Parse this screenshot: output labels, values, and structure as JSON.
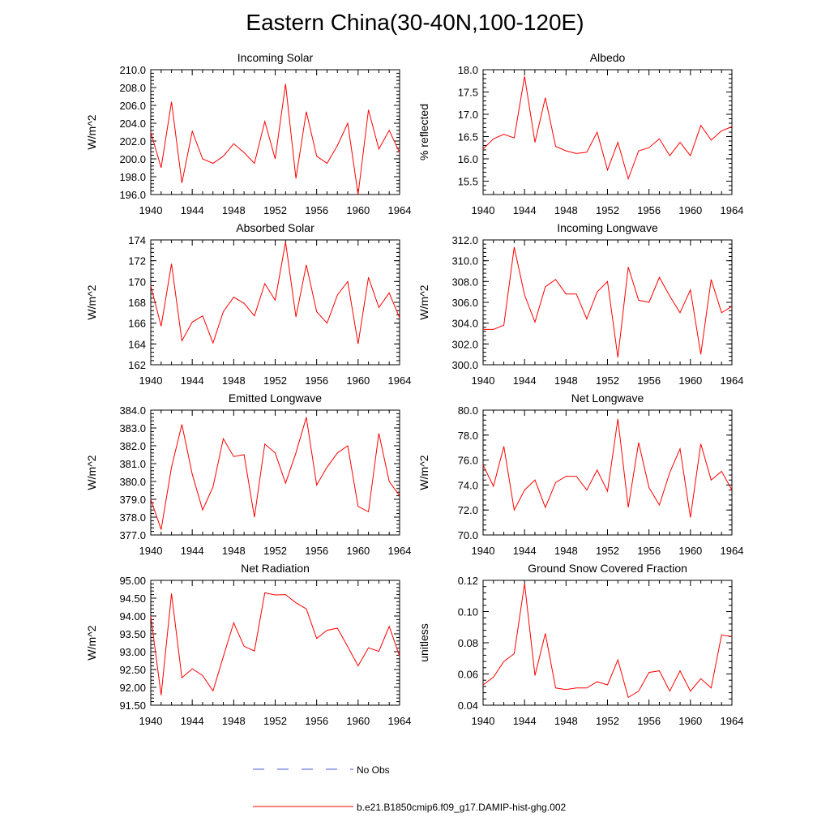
{
  "title": "Eastern China(30-40N,100-120E)",
  "legend": {
    "items": [
      {
        "label": "No Obs",
        "color": "#4b5bd6",
        "dash": true
      },
      {
        "label": "b.e21.B1850cmip6.f09_g17.DAMIP-hist-ghg.002",
        "color": "#ff0000",
        "dash": false
      }
    ]
  },
  "chart_data": [
    {
      "type": "line",
      "title": "Incoming Solar",
      "ylabel": "W/m^2",
      "xlim": [
        1940,
        1964
      ],
      "ylim": [
        196,
        210
      ],
      "yticks": [
        "196.0",
        "198.0",
        "200.0",
        "202.0",
        "204.0",
        "206.0",
        "208.0",
        "210.0"
      ],
      "ytick_values": [
        196,
        198,
        200,
        202,
        204,
        206,
        208,
        210
      ],
      "xticks": [
        "1940",
        "1944",
        "1948",
        "1952",
        "1956",
        "1960",
        "1964"
      ],
      "series": [
        {
          "color": "#ff0000",
          "x": [
            1940,
            1941,
            1942,
            1943,
            1944,
            1945,
            1946,
            1947,
            1948,
            1949,
            1950,
            1951,
            1952,
            1953,
            1954,
            1955,
            1956,
            1957,
            1958,
            1959,
            1960,
            1961,
            1962,
            1963,
            1964
          ],
          "values": [
            203.0,
            199.0,
            206.4,
            197.3,
            203.1,
            200.0,
            199.5,
            200.3,
            201.7,
            200.7,
            199.5,
            204.2,
            200.0,
            208.4,
            197.8,
            205.3,
            200.3,
            199.5,
            201.5,
            204.0,
            196.0,
            205.5,
            201.1,
            203.2,
            200.7
          ]
        }
      ]
    },
    {
      "type": "line",
      "title": "Albedo",
      "ylabel": "% reflected",
      "xlim": [
        1940,
        1964
      ],
      "ylim": [
        15.2,
        18.0
      ],
      "yticks": [
        "15.5",
        "16.0",
        "16.5",
        "17.0",
        "17.5",
        "18.0"
      ],
      "ytick_values": [
        15.5,
        16.0,
        16.5,
        17.0,
        17.5,
        18.0
      ],
      "xticks": [
        "1940",
        "1944",
        "1948",
        "1952",
        "1956",
        "1960",
        "1964"
      ],
      "series": [
        {
          "color": "#ff0000",
          "x": [
            1940,
            1941,
            1942,
            1943,
            1944,
            1945,
            1946,
            1947,
            1948,
            1949,
            1950,
            1951,
            1952,
            1953,
            1954,
            1955,
            1956,
            1957,
            1958,
            1959,
            1960,
            1961,
            1962,
            1963,
            1964
          ],
          "values": [
            16.22,
            16.45,
            16.55,
            16.47,
            17.85,
            16.37,
            17.37,
            16.28,
            16.18,
            16.12,
            16.15,
            16.6,
            15.75,
            16.37,
            15.55,
            16.18,
            16.25,
            16.45,
            16.07,
            16.37,
            16.07,
            16.75,
            16.42,
            16.63,
            16.72
          ]
        }
      ]
    },
    {
      "type": "line",
      "title": "Absorbed Solar",
      "ylabel": "W/m^2",
      "xlim": [
        1940,
        1964
      ],
      "ylim": [
        162,
        174
      ],
      "yticks": [
        "162",
        "164",
        "166",
        "168",
        "170",
        "172",
        "174"
      ],
      "ytick_values": [
        162,
        164,
        166,
        168,
        170,
        172,
        174
      ],
      "xticks": [
        "1940",
        "1944",
        "1948",
        "1952",
        "1956",
        "1960",
        "1964"
      ],
      "series": [
        {
          "color": "#ff0000",
          "x": [
            1940,
            1941,
            1942,
            1943,
            1944,
            1945,
            1946,
            1947,
            1948,
            1949,
            1950,
            1951,
            1952,
            1953,
            1954,
            1955,
            1956,
            1957,
            1958,
            1959,
            1960,
            1961,
            1962,
            1963,
            1964
          ],
          "values": [
            169.6,
            165.7,
            171.7,
            164.3,
            166.1,
            166.7,
            164.1,
            167.1,
            168.5,
            167.9,
            166.7,
            169.8,
            168.2,
            173.8,
            166.6,
            171.6,
            167.1,
            166.0,
            168.7,
            170.0,
            164.0,
            170.4,
            167.5,
            168.9,
            166.5
          ]
        }
      ]
    },
    {
      "type": "line",
      "title": "Incoming Longwave",
      "ylabel": "W/m^2",
      "xlim": [
        1940,
        1964
      ],
      "ylim": [
        300,
        312
      ],
      "yticks": [
        "300.0",
        "302.0",
        "304.0",
        "306.0",
        "308.0",
        "310.0",
        "312.0"
      ],
      "ytick_values": [
        300,
        302,
        304,
        306,
        308,
        310,
        312
      ],
      "xticks": [
        "1940",
        "1944",
        "1948",
        "1952",
        "1956",
        "1960",
        "1964"
      ],
      "series": [
        {
          "color": "#ff0000",
          "x": [
            1940,
            1941,
            1942,
            1943,
            1944,
            1945,
            1946,
            1947,
            1948,
            1949,
            1950,
            1951,
            1952,
            1953,
            1954,
            1955,
            1956,
            1957,
            1958,
            1959,
            1960,
            1961,
            1962,
            1963,
            1964
          ],
          "values": [
            303.4,
            303.4,
            303.8,
            311.3,
            306.7,
            304.1,
            307.5,
            308.2,
            306.8,
            306.8,
            304.4,
            307.0,
            308.0,
            300.7,
            309.4,
            306.2,
            306.0,
            308.4,
            306.6,
            305.0,
            307.2,
            301.0,
            308.2,
            305.0,
            305.6
          ]
        }
      ]
    },
    {
      "type": "line",
      "title": "Emitted Longwave",
      "ylabel": "W/m^2",
      "xlim": [
        1940,
        1964
      ],
      "ylim": [
        377,
        384
      ],
      "yticks": [
        "377.0",
        "378.0",
        "379.0",
        "380.0",
        "381.0",
        "382.0",
        "383.0",
        "384.0"
      ],
      "ytick_values": [
        377,
        378,
        379,
        380,
        381,
        382,
        383,
        384
      ],
      "xticks": [
        "1940",
        "1944",
        "1948",
        "1952",
        "1956",
        "1960",
        "1964"
      ],
      "series": [
        {
          "color": "#ff0000",
          "x": [
            1940,
            1941,
            1942,
            1943,
            1944,
            1945,
            1946,
            1947,
            1948,
            1949,
            1950,
            1951,
            1952,
            1953,
            1954,
            1955,
            1956,
            1957,
            1958,
            1959,
            1960,
            1961,
            1962,
            1963,
            1964
          ],
          "values": [
            379.0,
            377.3,
            380.8,
            383.2,
            380.4,
            378.4,
            379.7,
            382.4,
            381.4,
            381.5,
            378.0,
            382.1,
            381.6,
            379.9,
            381.6,
            383.6,
            379.8,
            380.8,
            381.6,
            382.0,
            378.6,
            378.3,
            382.7,
            380.0,
            379.2
          ]
        }
      ]
    },
    {
      "type": "line",
      "title": "Net Longwave",
      "ylabel": "W/m^2",
      "xlim": [
        1940,
        1964
      ],
      "ylim": [
        70,
        80
      ],
      "yticks": [
        "70.0",
        "72.0",
        "74.0",
        "76.0",
        "78.0",
        "80.0"
      ],
      "ytick_values": [
        70,
        72,
        74,
        76,
        78,
        80
      ],
      "xticks": [
        "1940",
        "1944",
        "1948",
        "1952",
        "1956",
        "1960",
        "1964"
      ],
      "series": [
        {
          "color": "#ff0000",
          "x": [
            1940,
            1941,
            1942,
            1943,
            1944,
            1945,
            1946,
            1947,
            1948,
            1949,
            1950,
            1951,
            1952,
            1953,
            1954,
            1955,
            1956,
            1957,
            1958,
            1959,
            1960,
            1961,
            1962,
            1963,
            1964
          ],
          "values": [
            75.6,
            73.9,
            77.1,
            72.0,
            73.6,
            74.4,
            72.2,
            74.2,
            74.7,
            74.7,
            73.6,
            75.2,
            73.5,
            79.3,
            72.2,
            77.4,
            73.8,
            72.4,
            75.0,
            76.9,
            71.4,
            77.3,
            74.4,
            75.1,
            73.6
          ]
        }
      ]
    },
    {
      "type": "line",
      "title": "Net Radiation",
      "ylabel": "W/m^2",
      "xlim": [
        1940,
        1964
      ],
      "ylim": [
        91.5,
        95.0
      ],
      "yticks": [
        "91.50",
        "92.00",
        "92.50",
        "93.00",
        "93.50",
        "94.00",
        "94.50",
        "95.00"
      ],
      "ytick_values": [
        91.5,
        92.0,
        92.5,
        93.0,
        93.5,
        94.0,
        94.5,
        95.0
      ],
      "xticks": [
        "1940",
        "1944",
        "1948",
        "1952",
        "1956",
        "1960",
        "1964"
      ],
      "series": [
        {
          "color": "#ff0000",
          "x": [
            1940,
            1941,
            1942,
            1943,
            1944,
            1945,
            1946,
            1947,
            1948,
            1949,
            1950,
            1951,
            1952,
            1953,
            1954,
            1955,
            1956,
            1957,
            1958,
            1959,
            1960,
            1961,
            1962,
            1963,
            1964
          ],
          "values": [
            94.0,
            91.78,
            94.63,
            92.27,
            92.52,
            92.33,
            91.9,
            92.86,
            93.81,
            93.15,
            93.02,
            94.65,
            94.59,
            94.6,
            94.37,
            94.2,
            93.37,
            93.6,
            93.66,
            93.14,
            92.6,
            93.11,
            93.01,
            93.71,
            92.87
          ]
        }
      ]
    },
    {
      "type": "line",
      "title": "Ground Snow Covered Fraction",
      "ylabel": "unitless",
      "xlim": [
        1940,
        1964
      ],
      "ylim": [
        0.04,
        0.12
      ],
      "yticks": [
        "0.04",
        "0.06",
        "0.08",
        "0.10",
        "0.12"
      ],
      "ytick_values": [
        0.04,
        0.06,
        0.08,
        0.1,
        0.12
      ],
      "xticks": [
        "1940",
        "1944",
        "1948",
        "1952",
        "1956",
        "1960",
        "1964"
      ],
      "series": [
        {
          "color": "#ff0000",
          "x": [
            1940,
            1941,
            1942,
            1943,
            1944,
            1945,
            1946,
            1947,
            1948,
            1949,
            1950,
            1951,
            1952,
            1953,
            1954,
            1955,
            1956,
            1957,
            1958,
            1959,
            1960,
            1961,
            1962,
            1963,
            1964
          ],
          "values": [
            0.053,
            0.058,
            0.068,
            0.073,
            0.118,
            0.059,
            0.086,
            0.051,
            0.05,
            0.051,
            0.051,
            0.055,
            0.053,
            0.069,
            0.045,
            0.049,
            0.061,
            0.062,
            0.049,
            0.062,
            0.049,
            0.057,
            0.051,
            0.085,
            0.084
          ]
        }
      ]
    }
  ]
}
